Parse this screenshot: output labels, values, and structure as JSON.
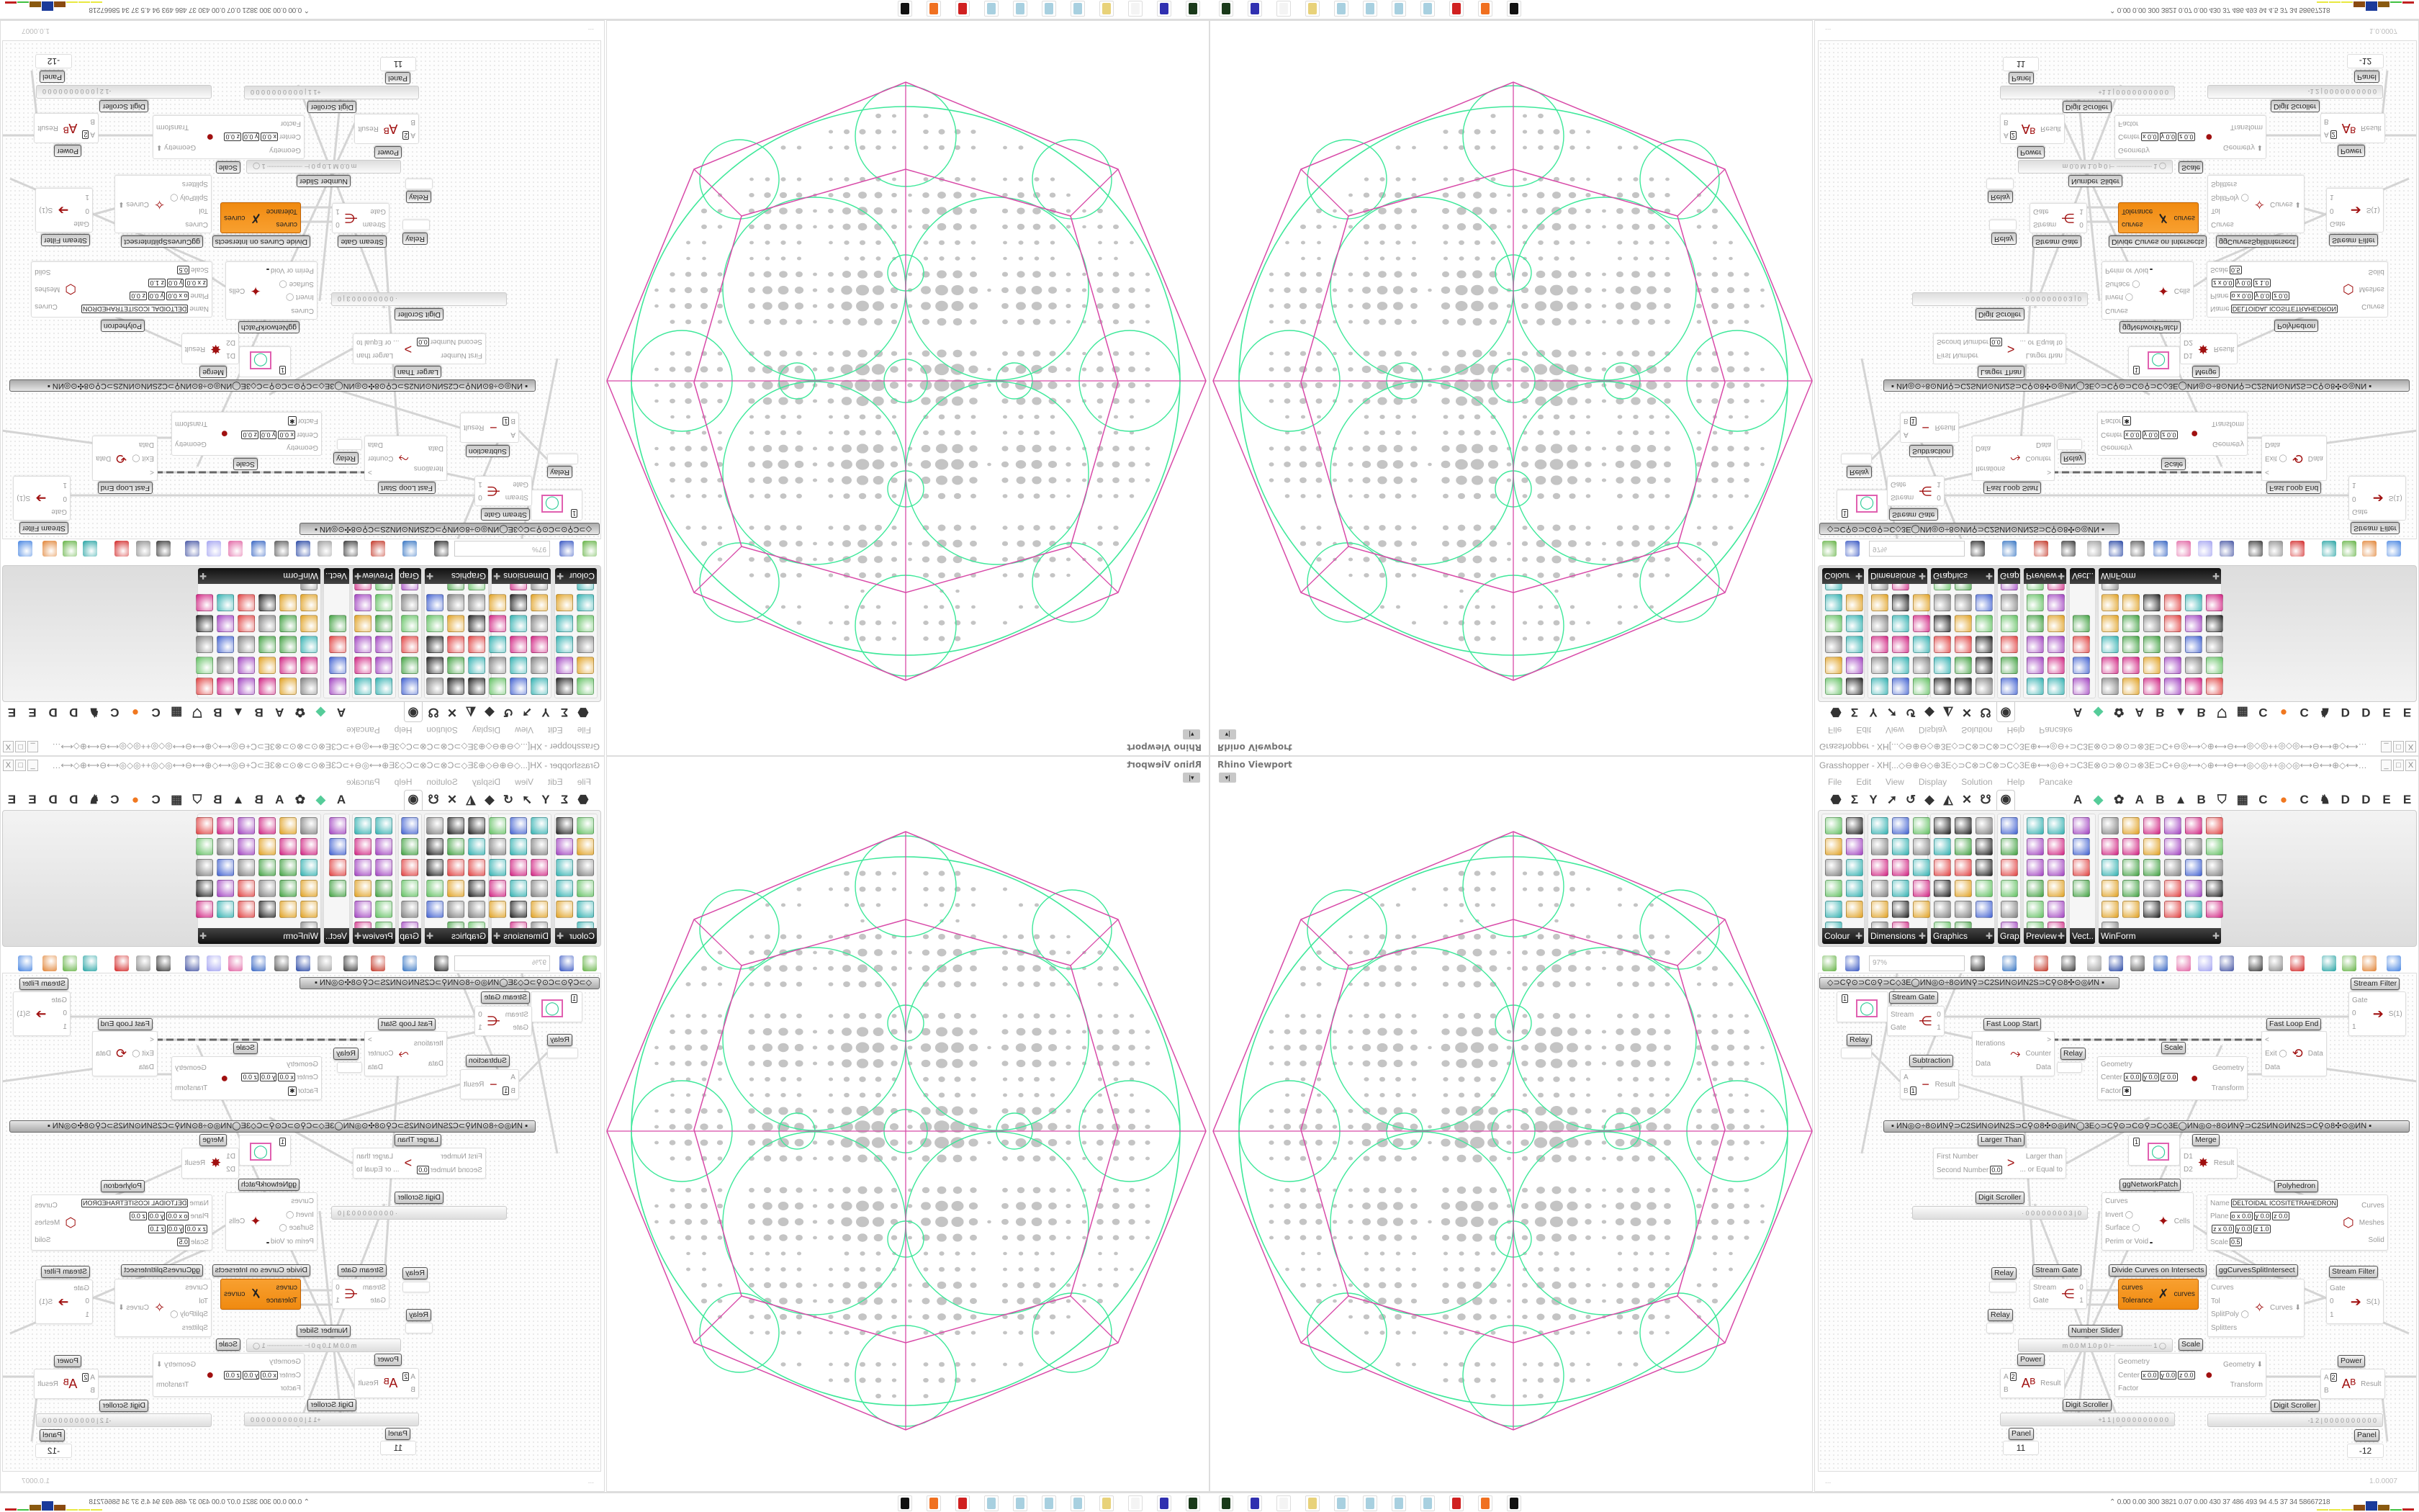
{
  "viewport": {
    "title": "Rhino Viewport",
    "dropdown": "▾|",
    "colors": {
      "outline": "#d84aa8",
      "curves": "#3ee89a",
      "cells": "#c4c4c4"
    }
  },
  "grasshopper": {
    "title": "Grasshopper - XH[...◇⊖⊕⊖◇⊕3E◇⊃C⊗⊃C⊗⊃C◇3E⊕⟷◎⊖+⊃C3E⊗⊙⊃⊗⊙⊃⊗3E⊃C+⊖◎⟷◇⊕⟷⊖⟷◎◇◎++◎◇◎⟷⊖⟷⊕◇⟷◎⊖+⊃C3E⊗⊙⊃⊗⊙⊃",
    "window_buttons": [
      "_",
      "□",
      "X"
    ],
    "menu": [
      "File",
      "Edit",
      "View",
      "Display",
      "Solution",
      "Help",
      "Pancake"
    ],
    "tabs": [
      {
        "icon": "params-hexagon-icon",
        "glyph": "⬣"
      },
      {
        "icon": "maths-sigma-icon",
        "glyph": "Σ"
      },
      {
        "icon": "sets-icon",
        "glyph": "Y"
      },
      {
        "icon": "vector-icon",
        "glyph": "➚"
      },
      {
        "icon": "curve-icon",
        "glyph": "↺"
      },
      {
        "icon": "surface-icon",
        "glyph": "◆"
      },
      {
        "icon": "mesh-icon",
        "glyph": "◭"
      },
      {
        "icon": "intersect-icon",
        "glyph": "✕"
      },
      {
        "icon": "transform-icon",
        "glyph": "☋"
      },
      {
        "icon": "display-eye-icon",
        "glyph": "◉",
        "selected": true
      },
      {
        "icon": "tab-a",
        "glyph": "A"
      },
      {
        "icon": "leaf-icon",
        "glyph": "◆"
      },
      {
        "icon": "gear-icon",
        "glyph": "✿"
      },
      {
        "icon": "tab-a2",
        "glyph": "A"
      },
      {
        "icon": "tab-b",
        "glyph": "B"
      },
      {
        "icon": "mountain-icon",
        "glyph": "▲"
      },
      {
        "icon": "tab-b2",
        "glyph": "B"
      },
      {
        "icon": "shield-icon",
        "glyph": "⛉"
      },
      {
        "icon": "grid-icon",
        "glyph": "▦"
      },
      {
        "icon": "tab-c",
        "glyph": "C"
      },
      {
        "icon": "orange-dot-icon",
        "glyph": "●"
      },
      {
        "icon": "tab-c2",
        "glyph": "C"
      },
      {
        "icon": "rooster-icon",
        "glyph": "♞"
      },
      {
        "icon": "tab-d",
        "glyph": "D"
      },
      {
        "icon": "tab-d2",
        "glyph": "D"
      },
      {
        "icon": "tab-e",
        "glyph": "E"
      },
      {
        "icon": "tab-e2",
        "glyph": "E"
      },
      {
        "icon": "more-grid-icon",
        "glyph": "▦"
      }
    ],
    "palette": [
      {
        "label": "Colour",
        "cols": 2,
        "icons": [
          "colour-wheel",
          "gradient",
          "colour-cube",
          "colour-triangle",
          "colour-rgb",
          "hsl",
          "red-sphere",
          "hsv",
          "red-sphere-2",
          "prism",
          "gradient-swatch"
        ]
      },
      {
        "label": "Dimensions",
        "cols": 3,
        "icons": [
          "tag-delete",
          "dim-linear",
          "dim-angle",
          "tag",
          "pen",
          "box-dim",
          "magenta-swatch",
          "dim-ordinate",
          "dim-baseline",
          "mesh-grid",
          "dim-radial",
          "dim-angular",
          "dim-points",
          "dim-curve",
          "dim-leader",
          "dim-line",
          "warning"
        ]
      },
      {
        "label": "Graphics",
        "cols": 3,
        "icons": [
          "disc",
          "text-circle",
          "eye-circle",
          "dotted-circle",
          "text-t",
          "square-circle",
          "blur-dot",
          "list-circle",
          "asterisk-circle",
          "ring",
          "link-circle",
          "save-image",
          "shaded-sphere",
          "dotted-ring",
          "save-star",
          "dark-sphere",
          "shape-circle"
        ]
      },
      {
        "label": "Grap..",
        "cols": 1,
        "icons": [
          "histogram",
          "legend",
          "pie-ring",
          "line-graph",
          "scatter",
          "area-graph"
        ]
      },
      {
        "label": "Preview",
        "cols": 2,
        "icons": [
          "orange-egg",
          "camera",
          "sphere-preview",
          "landscape",
          "blue-blobs",
          "blue-heart",
          "red-blobs",
          "green-heart",
          "gradient-square",
          "hearts",
          "sl-text",
          "tree-image"
        ]
      },
      {
        "label": "Vect..",
        "cols": 1,
        "icons": [
          "sort-numbers",
          "path-points",
          "red-arrows",
          "green-arrows"
        ]
      },
      {
        "label": "WinForm",
        "cols": 6,
        "icons": [
          "label-a",
          "list-form",
          "text-lines",
          "grid-green",
          "pie-yellow",
          "frame-yellow",
          "hatch-green",
          "number-field",
          "slider-form",
          "pie-chart",
          "person-form",
          "check-box",
          "text-form",
          "picture-form",
          "split-form",
          "add-text",
          "tabs-form",
          "button-ok",
          "cubes-form",
          "list-bullets",
          "green-panel",
          "ok-button",
          "toggle-form",
          "progress-bar",
          "bar-chart",
          "export-form",
          "calendar",
          "scroll-bar",
          "label-tag",
          "line-chart",
          "stacked-form"
        ]
      }
    ],
    "toolbar": {
      "zoom_value": "97%",
      "icons": [
        "new-file-icon",
        "save-icon",
        "zoom-extents-icon",
        "preview-eye-icon",
        "sketch-pen-icon",
        "battery-icon",
        "at-sign-icon",
        "gha-icon",
        "canvas-icon",
        "search-icon",
        "package-icon",
        "bulb-icon",
        "cross-wires-icon",
        "bell-icon",
        "chain-icon",
        "red-gem-icon",
        "teal-blob-icon",
        "green-blob-icon",
        "half-sphere-icon",
        "blue-sphere-icon"
      ]
    },
    "canvas": {
      "group_bars": [
        "◇⊃C⚲⊙⊃C⊙⚲⊃C◇3E◯ИN◎⊙÷8⊙ИN⚲⊃C2SИN⊙ИN2S⊃C⚲⊙8✣⊙◎ИN   ▪",
        "▪   ИN◎⊙÷8⊙ИN⚲⊃C2SИN⊙ИN2S⊃C⚲⊙8✣⊙◎ИN◯3E◇⊃C⚲⊙⊃C⊙⚲⊃C◇3E◯ИN◎⊙÷8⊙ИN⚲⊃C2SИN⊙ИN2S⊃C⚲⊙8✣⊙◎ИN   ▪"
      ],
      "components": [
        {
          "id": "circle1",
          "label": "",
          "inputs": [
            "",
            ""
          ],
          "outputs": [
            ""
          ],
          "icon": "circle-preview-icon",
          "glyph": "◯",
          "badge": "1"
        },
        {
          "id": "sgate1",
          "label": "Stream Gate",
          "inputs": [
            "Stream",
            "Gate"
          ],
          "outputs": [
            "0",
            "1"
          ],
          "icon": "stream-gate-icon",
          "glyph": "⋲"
        },
        {
          "id": "sfilter1",
          "label": "Stream Filter",
          "inputs": [
            "Gate",
            "0",
            "1"
          ],
          "outputs": [
            "S(1)"
          ],
          "icon": "stream-filter-icon",
          "glyph": "➔"
        },
        {
          "id": "relay1",
          "label": "Relay",
          "inputs": [],
          "outputs": [],
          "icon": "relay-icon",
          "glyph": ""
        },
        {
          "id": "floopstart",
          "label": "Fast Loop Start",
          "inputs": [
            "Iterations",
            "Data"
          ],
          "outputs": [
            ">",
            "Counter",
            "Data"
          ],
          "icon": "loop-start-icon",
          "glyph": "⤳"
        },
        {
          "id": "floopend",
          "label": "Fast Loop End",
          "inputs": [
            "<",
            "Exit ◯",
            "Data"
          ],
          "outputs": [
            "Data"
          ],
          "icon": "loop-end-icon",
          "glyph": "⟲"
        },
        {
          "id": "relay2",
          "label": "Relay",
          "inputs": [],
          "outputs": [],
          "icon": "relay-icon",
          "glyph": ""
        },
        {
          "id": "scale1",
          "label": "Scale",
          "inputs": [
            "Geometry",
            {
              "n": "Center",
              "v": [
                "x 0.0",
                "y 0.0",
                "z 0.0"
              ]
            },
            {
              "n": "Factor",
              "v": [
                "✱"
              ]
            }
          ],
          "outputs": [
            "Geometry",
            "Transform"
          ],
          "icon": "scale-icon",
          "glyph": "●"
        },
        {
          "id": "subtraction",
          "label": "Subtraction",
          "inputs": [
            "A",
            {
              "n": "B",
              "v": [
                "1"
              ]
            }
          ],
          "outputs": [
            "Result"
          ],
          "icon": "minus-icon",
          "glyph": "−"
        },
        {
          "id": "largerthan",
          "label": "Larger Than",
          "inputs": [
            "First Number",
            {
              "n": "Second Number",
              "v": [
                "0.0"
              ]
            }
          ],
          "outputs": [
            "Larger than",
            "... or Equal to"
          ],
          "icon": "greater-than-icon",
          "glyph": ">"
        },
        {
          "id": "circle2",
          "label": "",
          "inputs": [
            "",
            ""
          ],
          "outputs": [
            ""
          ],
          "icon": "circle-preview-icon",
          "glyph": "◯",
          "badge": "1"
        },
        {
          "id": "merge",
          "label": "Merge",
          "inputs": [
            "D1",
            "D2"
          ],
          "outputs": [
            "Result"
          ],
          "icon": "merge-icon",
          "glyph": "✸"
        },
        {
          "id": "ggnetwork",
          "label": "ggNetworkPatch",
          "inputs": [
            "Curves",
            "Invert ◯",
            "Surface ◯",
            {
              "n": "Perim or Void",
              "v": [
                " "
              ]
            }
          ],
          "outputs": [
            "Cells"
          ],
          "icon": "network-patch-icon",
          "glyph": "✦"
        },
        {
          "id": "polyhedron",
          "label": "Polyhedron",
          "inputs": [
            {
              "n": "Name",
              "v": [
                "DELTOIDAL ICOSITETRAHEDRON"
              ]
            },
            {
              "n": "Plane",
              "v": [
                "o x 0.0",
                "y 0.0",
                "z 0.0"
              ]
            },
            {
              "n": "",
              "v": [
                "z x 0.0",
                "y 0.0",
                "z 1.0"
              ]
            },
            {
              "n": "Scale",
              "v": [
                "0.5"
              ]
            }
          ],
          "outputs": [
            "Curves",
            "Meshes",
            "Solid"
          ],
          "icon": "polyhedron-icon",
          "glyph": "⬡"
        },
        {
          "id": "relay3",
          "label": "Relay",
          "inputs": [],
          "outputs": [],
          "icon": "relay-icon",
          "glyph": ""
        },
        {
          "id": "sgate2",
          "label": "Stream Gate",
          "inputs": [
            "Stream",
            "Gate"
          ],
          "outputs": [
            "0",
            "1"
          ],
          "icon": "stream-gate-icon",
          "glyph": "⋲"
        },
        {
          "id": "dividecurves",
          "label": "Divide Curves on Intersects",
          "inputs": [
            "curves",
            "Tolerance"
          ],
          "outputs": [
            "curves"
          ],
          "icon": "divide-curves-icon",
          "glyph": "✗",
          "orange": true
        },
        {
          "id": "ggsplit",
          "label": "ggCurvesSplitIntersect",
          "inputs": [
            "Curves",
            "Tol",
            "SplitPoly ◯",
            "Splitters"
          ],
          "outputs": [
            "Curves ⬇"
          ],
          "icon": "split-intersect-icon",
          "glyph": "✧"
        },
        {
          "id": "sfilter2",
          "label": "Stream Filter",
          "inputs": [
            "Gate",
            "0",
            "1"
          ],
          "outputs": [
            "S(1)"
          ],
          "icon": "stream-filter-icon",
          "glyph": "➔"
        },
        {
          "id": "relay4",
          "label": "Relay",
          "inputs": [],
          "outputs": [],
          "icon": "relay-icon",
          "glyph": ""
        },
        {
          "id": "scale2",
          "label": "Scale",
          "inputs": [
            "Geometry",
            {
              "n": "Center",
              "v": [
                "x 0.0",
                "y 0.0",
                "z 0.0"
              ]
            },
            "Factor"
          ],
          "outputs": [
            "Geometry ⬇",
            "Transform"
          ],
          "icon": "scale-icon",
          "glyph": "●"
        },
        {
          "id": "power1",
          "label": "Power",
          "inputs": [
            {
              "n": "A",
              "v": [
                "2"
              ]
            },
            "B"
          ],
          "outputs": [
            "Result"
          ],
          "icon": "power-icon",
          "glyph": "Aᴮ"
        },
        {
          "id": "power2",
          "label": "Power",
          "inputs": [
            {
              "n": "A",
              "v": [
                "2"
              ]
            },
            "B"
          ],
          "outputs": [
            "Result"
          ],
          "icon": "power-icon",
          "glyph": "Aᴮ"
        }
      ],
      "sliders": [
        {
          "id": "digit1",
          "label": "Digit Scroller",
          "value": "· 0 0 0 0 0 0 0 0 3 | 0"
        },
        {
          "id": "numslider",
          "label": "Number Slider",
          "value": "m 0.0  M 1.0  p 0   ⊢ ┈┈┈┈┈┈┈┈┈ 1 ◯"
        },
        {
          "id": "digit2",
          "label": "Digit Scroller",
          "value": "+1 1 | 0 0 0 0 0 0 0 0 0 0"
        },
        {
          "id": "digit3",
          "label": "Digit Scroller",
          "value": "-1 2 | 0 0 0 0 0 0 0 0 0 0"
        }
      ],
      "panels": [
        {
          "id": "panel1",
          "label": "Panel",
          "value": "11"
        },
        {
          "id": "panel2",
          "label": "Panel",
          "value": "-12"
        }
      ]
    },
    "status": {
      "left": "...",
      "version": "1.0.0007"
    }
  },
  "taskbar": {
    "apps": [
      {
        "icon": "rhino-device-icon",
        "color": "#1a3a1a"
      },
      {
        "icon": "floppy-64-icon",
        "color": "#3030b0"
      },
      {
        "icon": "blank-app-icon",
        "color": "#f4f4f4"
      },
      {
        "icon": "folder-icon",
        "color": "#e8d27a"
      },
      {
        "icon": "notepad-icon",
        "color": "#a8d0e0"
      },
      {
        "icon": "notepad-icon",
        "color": "#a8d0e0"
      },
      {
        "icon": "notepad-icon",
        "color": "#a8d0e0"
      },
      {
        "icon": "notepad-icon",
        "color": "#a8d0e0"
      },
      {
        "icon": "red-app-icon",
        "color": "#d02020"
      },
      {
        "icon": "firefox-icon",
        "color": "#f07020"
      },
      {
        "icon": "inkscape-icon",
        "color": "#111111"
      }
    ],
    "system_stats": "⌃  0.00 0.00 300 3821 0.07 0.00 430  37  486  493  94  4.5  37  34  58667218",
    "meter_colors": [
      "#e8e840",
      "#e8e840",
      "#e8e840",
      "#8a4a10",
      "#1a3a9a",
      "#8a5a10",
      "#40c040",
      "#c02020"
    ],
    "meter_levels": [
      0.1,
      0.1,
      0.1,
      0.6,
      0.95,
      0.55,
      0.1,
      0.25
    ]
  }
}
